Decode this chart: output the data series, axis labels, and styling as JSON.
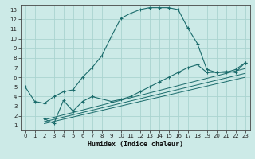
{
  "xlabel": "Humidex (Indice chaleur)",
  "bg_color": "#cceae7",
  "grid_color": "#aad4d0",
  "line_color": "#1a6b6b",
  "xlim": [
    -0.5,
    23.5
  ],
  "ylim": [
    0.5,
    13.5
  ],
  "xticks": [
    0,
    1,
    2,
    3,
    4,
    5,
    6,
    7,
    8,
    9,
    10,
    11,
    12,
    13,
    14,
    15,
    16,
    17,
    18,
    19,
    20,
    21,
    22,
    23
  ],
  "yticks": [
    1,
    2,
    3,
    4,
    5,
    6,
    7,
    8,
    9,
    10,
    11,
    12,
    13
  ],
  "curve1_x": [
    0,
    1,
    2,
    3,
    4,
    5,
    6,
    7,
    8,
    9,
    10,
    11,
    12,
    13,
    14,
    15,
    16,
    17,
    18,
    19,
    20,
    21,
    22,
    23
  ],
  "curve1_y": [
    5.0,
    3.5,
    3.3,
    4.0,
    4.5,
    4.7,
    6.0,
    7.0,
    8.2,
    10.2,
    12.1,
    12.6,
    13.0,
    13.2,
    13.2,
    13.2,
    13.0,
    11.1,
    9.5,
    6.8,
    6.5,
    6.6,
    6.5,
    7.5
  ],
  "curve2_x": [
    2,
    3,
    4,
    5,
    6,
    7,
    9,
    10,
    11,
    12,
    13,
    14,
    15,
    16,
    17,
    18,
    19,
    20,
    21,
    22,
    23
  ],
  "curve2_y": [
    1.7,
    1.2,
    3.6,
    2.5,
    3.5,
    4.0,
    3.5,
    3.7,
    4.0,
    4.5,
    5.0,
    5.5,
    6.0,
    6.5,
    7.0,
    7.3,
    6.5,
    6.5,
    6.5,
    6.8,
    7.5
  ],
  "diag_lines": [
    {
      "x": [
        2,
        23
      ],
      "y": [
        1.2,
        6.0
      ]
    },
    {
      "x": [
        2,
        23
      ],
      "y": [
        1.4,
        6.4
      ]
    },
    {
      "x": [
        2,
        23
      ],
      "y": [
        1.6,
        6.9
      ]
    }
  ]
}
